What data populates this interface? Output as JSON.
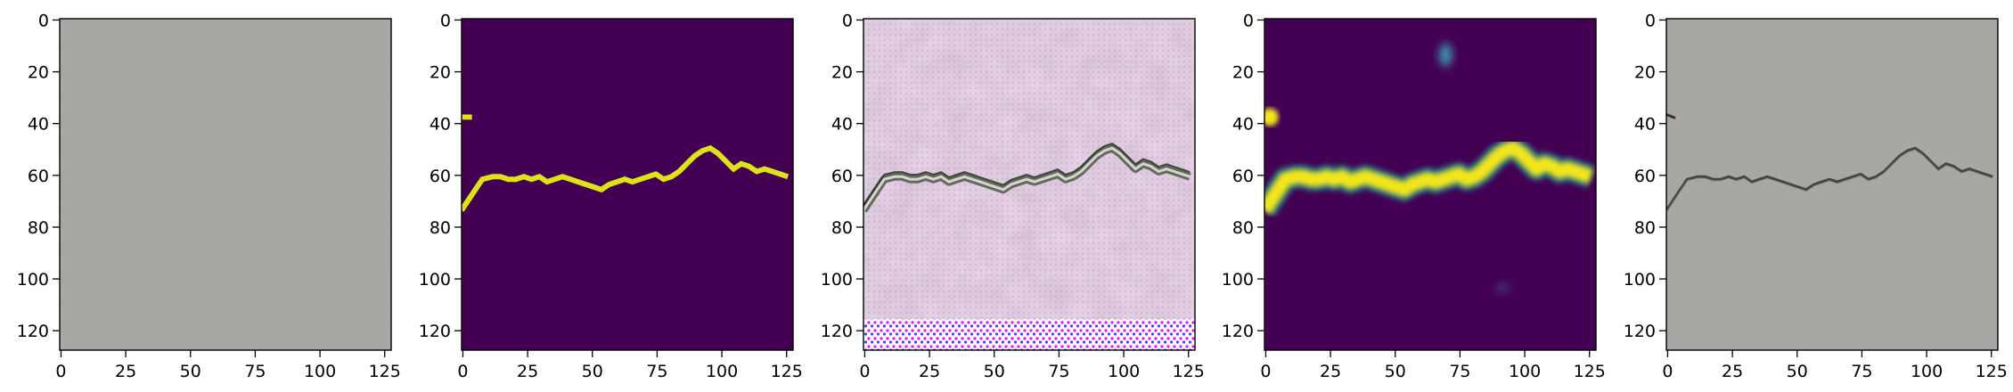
{
  "figure": {
    "description_type": "image-grid",
    "panel_count": 5,
    "x_ticks": [
      "0",
      "25",
      "50",
      "75",
      "100",
      "125"
    ],
    "y_ticks": [
      "0",
      "20",
      "40",
      "60",
      "80",
      "100",
      "120"
    ],
    "tick_values_x": [
      0,
      25,
      50,
      75,
      100,
      125
    ],
    "tick_values_y": [
      0,
      20,
      40,
      60,
      80,
      100,
      120
    ],
    "image_extent": [
      0,
      128
    ],
    "crack_path": [
      [
        0,
        74
      ],
      [
        2,
        71
      ],
      [
        4,
        68
      ],
      [
        6,
        65
      ],
      [
        8,
        62
      ],
      [
        12,
        61
      ],
      [
        15,
        61
      ],
      [
        18,
        62
      ],
      [
        21,
        62
      ],
      [
        24,
        61
      ],
      [
        27,
        62
      ],
      [
        30,
        61
      ],
      [
        33,
        63
      ],
      [
        36,
        62
      ],
      [
        39,
        61
      ],
      [
        42,
        62
      ],
      [
        45,
        63
      ],
      [
        48,
        64
      ],
      [
        51,
        65
      ],
      [
        54,
        66
      ],
      [
        57,
        64
      ],
      [
        60,
        63
      ],
      [
        63,
        62
      ],
      [
        66,
        63
      ],
      [
        69,
        62
      ],
      [
        72,
        61
      ],
      [
        75,
        60
      ],
      [
        78,
        62
      ],
      [
        81,
        61
      ],
      [
        84,
        59
      ],
      [
        87,
        56
      ],
      [
        90,
        53
      ],
      [
        93,
        51
      ],
      [
        96,
        50
      ],
      [
        99,
        52
      ],
      [
        102,
        55
      ],
      [
        105,
        58
      ],
      [
        108,
        56
      ],
      [
        111,
        57
      ],
      [
        114,
        59
      ],
      [
        117,
        58
      ],
      [
        120,
        59
      ],
      [
        123,
        60
      ],
      [
        126,
        61
      ]
    ],
    "colors": {
      "mask_background": "#440154",
      "mask_crack": "#dde318",
      "heat_crack": "#f1e51d",
      "heat_edge": "#21918c",
      "concrete": "#a9a8a4"
    }
  }
}
